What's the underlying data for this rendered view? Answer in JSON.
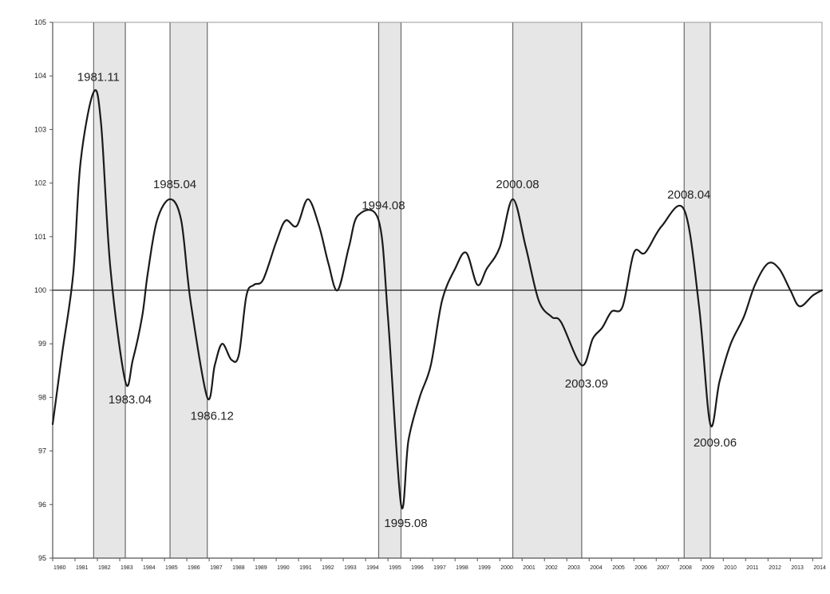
{
  "chart_data": {
    "type": "line",
    "title": "",
    "xlabel": "",
    "ylabel": "",
    "x_range": [
      "1980.01",
      "2014.06"
    ],
    "ylim": [
      95,
      105
    ],
    "y_ticks": [
      95,
      96,
      97,
      98,
      99,
      100,
      101,
      102,
      103,
      104,
      105
    ],
    "reference_line": 100,
    "grid": false,
    "series": [
      {
        "points": [
          [
            "1980.01",
            97.5
          ],
          [
            "1980.06",
            98.8
          ],
          [
            "1980.12",
            100.3
          ],
          [
            "1981.04",
            102.4
          ],
          [
            "1981.11",
            103.7
          ],
          [
            "1982.03",
            103.1
          ],
          [
            "1982.08",
            100.4
          ],
          [
            "1983.04",
            98.3
          ],
          [
            "1983.08",
            98.7
          ],
          [
            "1984.01",
            99.5
          ],
          [
            "1984.04",
            100.3
          ],
          [
            "1984.09",
            101.3
          ],
          [
            "1985.04",
            101.7
          ],
          [
            "1985.10",
            101.3
          ],
          [
            "1986.03",
            99.8
          ],
          [
            "1986.12",
            98.0
          ],
          [
            "1987.04",
            98.6
          ],
          [
            "1987.08",
            99.0
          ],
          [
            "1988.01",
            98.7
          ],
          [
            "1988.05",
            98.8
          ],
          [
            "1988.09",
            99.9
          ],
          [
            "1989.01",
            100.1
          ],
          [
            "1989.06",
            100.2
          ],
          [
            "1990.01",
            100.9
          ],
          [
            "1990.06",
            101.3
          ],
          [
            "1990.12",
            101.2
          ],
          [
            "1991.06",
            101.7
          ],
          [
            "1991.12",
            101.2
          ],
          [
            "1992.05",
            100.5
          ],
          [
            "1992.10",
            100.0
          ],
          [
            "1993.04",
            100.8
          ],
          [
            "1993.09",
            101.4
          ],
          [
            "1994.08",
            101.3
          ],
          [
            "1995.01",
            99.5
          ],
          [
            "1995.08",
            96.0
          ],
          [
            "1995.12",
            97.2
          ],
          [
            "1996.06",
            98.0
          ],
          [
            "1996.12",
            98.6
          ],
          [
            "1997.06",
            99.8
          ],
          [
            "1998.01",
            100.4
          ],
          [
            "1998.07",
            100.7
          ],
          [
            "1999.01",
            100.1
          ],
          [
            "1999.06",
            100.4
          ],
          [
            "2000.01",
            100.8
          ],
          [
            "2000.08",
            101.7
          ],
          [
            "2001.03",
            100.8
          ],
          [
            "2001.10",
            99.8
          ],
          [
            "2002.05",
            99.5
          ],
          [
            "2002.10",
            99.4
          ],
          [
            "2003.09",
            98.6
          ],
          [
            "2004.03",
            99.1
          ],
          [
            "2004.08",
            99.3
          ],
          [
            "2005.01",
            99.6
          ],
          [
            "2005.07",
            99.7
          ],
          [
            "2006.01",
            100.7
          ],
          [
            "2006.07",
            100.7
          ],
          [
            "2007.04",
            101.2
          ],
          [
            "2008.04",
            101.5
          ],
          [
            "2008.12",
            99.7
          ],
          [
            "2009.06",
            97.5
          ],
          [
            "2009.11",
            98.3
          ],
          [
            "2010.05",
            99.0
          ],
          [
            "2010.12",
            99.5
          ],
          [
            "2011.06",
            100.1
          ],
          [
            "2012.01",
            100.5
          ],
          [
            "2012.07",
            100.4
          ],
          [
            "2013.01",
            100.0
          ],
          [
            "2013.06",
            99.7
          ],
          [
            "2014.01",
            99.9
          ],
          [
            "2014.06",
            100.0
          ]
        ]
      }
    ],
    "shaded_periods": [
      [
        "1981.11",
        "1983.04"
      ],
      [
        "1985.04",
        "1986.12"
      ],
      [
        "1994.08",
        "1995.08"
      ],
      [
        "2000.08",
        "2003.09"
      ],
      [
        "2008.04",
        "2009.06"
      ]
    ],
    "annotations": [
      {
        "text": "1981.11",
        "x": "1981.11",
        "y": 103.7,
        "position": "above"
      },
      {
        "text": "1983.04",
        "x": "1983.04",
        "y": 98.3,
        "position": "below"
      },
      {
        "text": "1985.04",
        "x": "1985.04",
        "y": 101.7,
        "position": "above"
      },
      {
        "text": "1986.12",
        "x": "1986.12",
        "y": 98.0,
        "position": "below"
      },
      {
        "text": "1994.08",
        "x": "1994.08",
        "y": 101.3,
        "position": "above"
      },
      {
        "text": "1995.08",
        "x": "1995.08",
        "y": 96.0,
        "position": "below"
      },
      {
        "text": "2000.08",
        "x": "2000.08",
        "y": 101.7,
        "position": "above"
      },
      {
        "text": "2003.09",
        "x": "2003.09",
        "y": 98.6,
        "position": "below"
      },
      {
        "text": "2008.04",
        "x": "2008.04",
        "y": 101.5,
        "position": "above"
      },
      {
        "text": "2009.06",
        "x": "2009.06",
        "y": 97.5,
        "position": "below"
      }
    ],
    "x_tick_labels": [
      "1980",
      "1981",
      "1982",
      "1983",
      "1984",
      "1985",
      "1986",
      "1987",
      "1988",
      "1989",
      "1990",
      "1991",
      "1992",
      "1993",
      "1994",
      "1995",
      "1996",
      "1997",
      "1998",
      "1999",
      "2000",
      "2001",
      "2002",
      "2003",
      "2004",
      "2005",
      "2006",
      "2007",
      "2008",
      "2009",
      "2010",
      "2011",
      "2012",
      "2013",
      "2014"
    ],
    "colors": {
      "line": "#1a1a1a",
      "shading": "#e6e6e6",
      "shade_border": "#6a6a6a",
      "axis": "#555555",
      "text": "#222222"
    }
  }
}
